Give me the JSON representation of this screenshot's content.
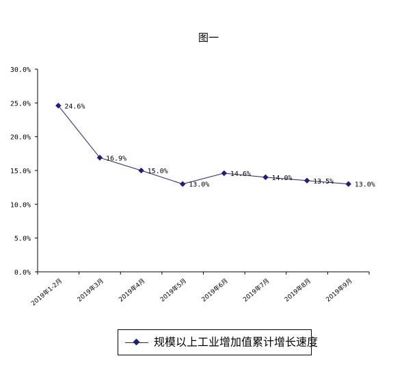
{
  "chart_data": {
    "type": "line",
    "title": "图一",
    "categories": [
      "2019年1-2月",
      "2019年3月",
      "2019年4月",
      "2019年5月",
      "2019年6月",
      "2019年7月",
      "2019年8月",
      "2019年9月"
    ],
    "series": [
      {
        "name": "规模以上工业增加值累计增长速度",
        "values": [
          24.6,
          16.9,
          15.0,
          13.0,
          14.6,
          14.0,
          13.5,
          13.0
        ],
        "labels": [
          "24.6%",
          "16.9%",
          "15.0%",
          "13.0%",
          "14.6%",
          "14.0%",
          "13.5%",
          "13.0%"
        ],
        "color": "#1f1f7a"
      }
    ],
    "yticks": [
      "0.0%",
      "5.0%",
      "10.0%",
      "15.0%",
      "20.0%",
      "25.0%",
      "30.0%"
    ],
    "ylim": [
      0,
      30
    ],
    "grid": false,
    "legend": "bottom"
  }
}
